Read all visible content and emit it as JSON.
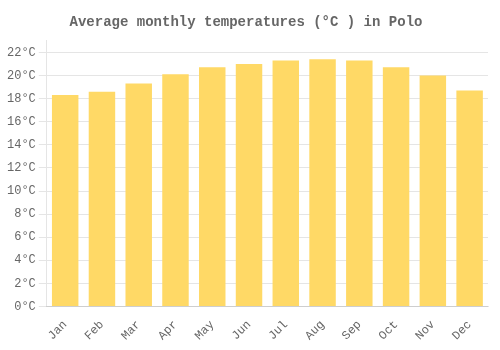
{
  "chart_data": {
    "type": "bar",
    "title": "Average monthly temperatures (°C ) in Polo",
    "categories": [
      "Jan",
      "Feb",
      "Mar",
      "Apr",
      "May",
      "Jun",
      "Jul",
      "Aug",
      "Sep",
      "Oct",
      "Nov",
      "Dec"
    ],
    "values": [
      18.3,
      18.6,
      19.3,
      20.1,
      20.7,
      21.0,
      21.3,
      21.4,
      21.3,
      20.7,
      20.0,
      18.7
    ],
    "color": "#FFD966",
    "ylim": [
      0,
      23
    ],
    "yticks": [
      {
        "value": 0,
        "label": "0°C"
      },
      {
        "value": 2,
        "label": "2°C"
      },
      {
        "value": 4,
        "label": "4°C"
      },
      {
        "value": 6,
        "label": "6°C"
      },
      {
        "value": 8,
        "label": "8°C"
      },
      {
        "value": 10,
        "label": "10°C"
      },
      {
        "value": 12,
        "label": "12°C"
      },
      {
        "value": 14,
        "label": "14°C"
      },
      {
        "value": 16,
        "label": "16°C"
      },
      {
        "value": 18,
        "label": "18°C"
      },
      {
        "value": 20,
        "label": "20°C"
      },
      {
        "value": 22,
        "label": "22°C"
      }
    ],
    "grid": true
  }
}
